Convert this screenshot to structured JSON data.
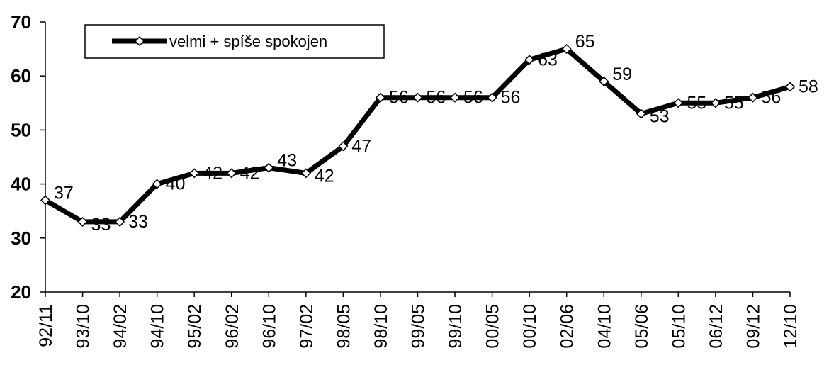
{
  "chart_data": {
    "type": "line",
    "categories": [
      "92/11",
      "93/10",
      "94/02",
      "94/10",
      "95/02",
      "96/02",
      "96/10",
      "97/02",
      "98/05",
      "98/10",
      "99/05",
      "99/10",
      "00/05",
      "00/10",
      "02/06",
      "04/10",
      "05/06",
      "05/10",
      "06/12",
      "09/12",
      "12/10"
    ],
    "series": [
      {
        "name": "velmi + spíše spokojen",
        "values": [
          37,
          33,
          33,
          40,
          42,
          42,
          43,
          42,
          47,
          56,
          56,
          56,
          56,
          63,
          65,
          59,
          53,
          55,
          55,
          56,
          58
        ]
      }
    ],
    "ylim": [
      20,
      70
    ],
    "yticks": [
      20,
      30,
      40,
      50,
      60,
      70
    ],
    "legend_position": "top-left",
    "grid": false,
    "colors": {
      "line": "#000000",
      "marker_fill": "#ffffff",
      "marker_stroke": "#000000"
    }
  }
}
